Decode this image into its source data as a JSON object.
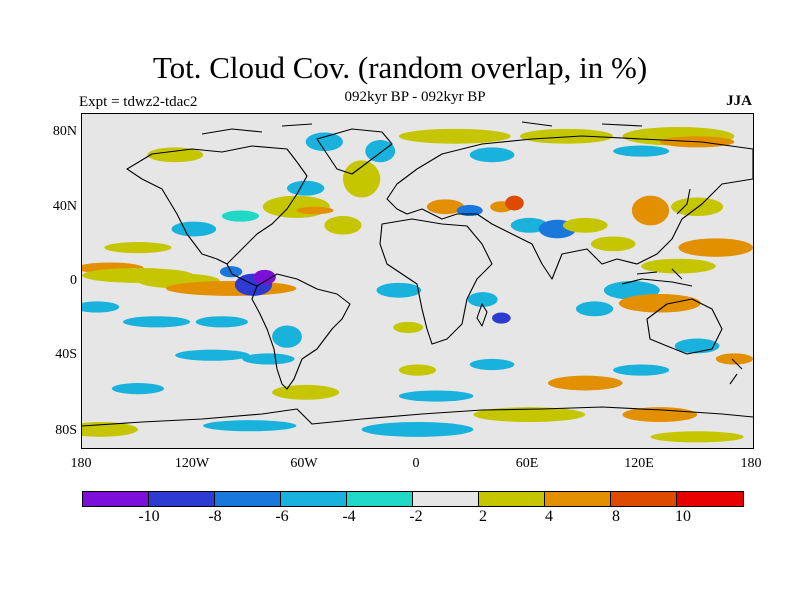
{
  "title": "Tot. Cloud Cov. (random overlap, in %)",
  "subtitle": "092kyr BP - 092kyr BP",
  "experiment": "Expt = tdwz2-tdac2",
  "season": "JJA",
  "lat_ticks": [
    "80N",
    "40N",
    "0",
    "40S",
    "80S"
  ],
  "lon_ticks": [
    "180",
    "120W",
    "60W",
    "0",
    "60E",
    "120E",
    "180"
  ],
  "colorbar": {
    "labels": [
      "-10",
      "-8",
      "-6",
      "-4",
      "-2",
      "2",
      "4",
      "8",
      "10"
    ],
    "colors": [
      "#7b11d9",
      "#2e3bd3",
      "#1a77dc",
      "#18b2dc",
      "#20d8c6",
      "#e6e6e6",
      "#c6c600",
      "#e29000",
      "#dd4a00",
      "#e60000"
    ]
  },
  "map": {
    "background": "#e6e6e6",
    "lon_range": [
      -180,
      180
    ],
    "lat_range": [
      -90,
      90
    ],
    "anomalies": [
      {
        "lon": -165,
        "lat": 7,
        "rx": 18,
        "ry": 3,
        "level": "8"
      },
      {
        "lon": -150,
        "lat": 3,
        "rx": 30,
        "ry": 4,
        "level": "4"
      },
      {
        "lon": -128,
        "lat": 0,
        "rx": 22,
        "ry": 4,
        "level": "4"
      },
      {
        "lon": -100,
        "lat": -4,
        "rx": 35,
        "ry": 4,
        "level": "8"
      },
      {
        "lon": -88,
        "lat": -2,
        "rx": 10,
        "ry": 6,
        "level": "-8"
      },
      {
        "lon": -82,
        "lat": 2,
        "rx": 6,
        "ry": 4,
        "level": "-10"
      },
      {
        "lon": -100,
        "lat": 5,
        "rx": 6,
        "ry": 3,
        "level": "-6"
      },
      {
        "lon": -172,
        "lat": -14,
        "rx": 12,
        "ry": 3,
        "level": "-4"
      },
      {
        "lon": -140,
        "lat": -22,
        "rx": 18,
        "ry": 3,
        "level": "-4"
      },
      {
        "lon": -105,
        "lat": -22,
        "rx": 14,
        "ry": 3,
        "level": "-4"
      },
      {
        "lon": -150,
        "lat": 18,
        "rx": 18,
        "ry": 3,
        "level": "4"
      },
      {
        "lon": -120,
        "lat": 28,
        "rx": 12,
        "ry": 4,
        "level": "-4"
      },
      {
        "lon": -95,
        "lat": 35,
        "rx": 10,
        "ry": 3,
        "level": "-2"
      },
      {
        "lon": -65,
        "lat": 40,
        "rx": 18,
        "ry": 6,
        "level": "4"
      },
      {
        "lon": -55,
        "lat": 38,
        "rx": 10,
        "ry": 2,
        "level": "8"
      },
      {
        "lon": -40,
        "lat": 30,
        "rx": 10,
        "ry": 5,
        "level": "4"
      },
      {
        "lon": -60,
        "lat": 50,
        "rx": 10,
        "ry": 4,
        "level": "-4"
      },
      {
        "lon": -30,
        "lat": 55,
        "rx": 10,
        "ry": 10,
        "level": "4"
      },
      {
        "lon": -20,
        "lat": 70,
        "rx": 8,
        "ry": 6,
        "level": "-4"
      },
      {
        "lon": -50,
        "lat": 75,
        "rx": 10,
        "ry": 5,
        "level": "-4"
      },
      {
        "lon": -130,
        "lat": 68,
        "rx": 15,
        "ry": 4,
        "level": "4"
      },
      {
        "lon": 20,
        "lat": 78,
        "rx": 30,
        "ry": 4,
        "level": "4"
      },
      {
        "lon": 80,
        "lat": 78,
        "rx": 25,
        "ry": 4,
        "level": "4"
      },
      {
        "lon": 140,
        "lat": 78,
        "rx": 30,
        "ry": 5,
        "level": "4"
      },
      {
        "lon": 150,
        "lat": 75,
        "rx": 20,
        "ry": 3,
        "level": "8"
      },
      {
        "lon": 120,
        "lat": 70,
        "rx": 15,
        "ry": 3,
        "level": "-4"
      },
      {
        "lon": 40,
        "lat": 68,
        "rx": 12,
        "ry": 4,
        "level": "-4"
      },
      {
        "lon": 15,
        "lat": 40,
        "rx": 10,
        "ry": 4,
        "level": "8"
      },
      {
        "lon": 28,
        "lat": 38,
        "rx": 7,
        "ry": 3,
        "level": "-6"
      },
      {
        "lon": 45,
        "lat": 40,
        "rx": 6,
        "ry": 3,
        "level": "8"
      },
      {
        "lon": 52,
        "lat": 42,
        "rx": 5,
        "ry": 4,
        "level": "10"
      },
      {
        "lon": 60,
        "lat": 30,
        "rx": 10,
        "ry": 4,
        "level": "-4"
      },
      {
        "lon": 75,
        "lat": 28,
        "rx": 10,
        "ry": 5,
        "level": "-6"
      },
      {
        "lon": 90,
        "lat": 30,
        "rx": 12,
        "ry": 4,
        "level": "4"
      },
      {
        "lon": 105,
        "lat": 20,
        "rx": 12,
        "ry": 4,
        "level": "4"
      },
      {
        "lon": 125,
        "lat": 38,
        "rx": 10,
        "ry": 8,
        "level": "8"
      },
      {
        "lon": 150,
        "lat": 40,
        "rx": 14,
        "ry": 5,
        "level": "4"
      },
      {
        "lon": 160,
        "lat": 18,
        "rx": 20,
        "ry": 5,
        "level": "8"
      },
      {
        "lon": 140,
        "lat": 8,
        "rx": 20,
        "ry": 4,
        "level": "4"
      },
      {
        "lon": 115,
        "lat": -5,
        "rx": 15,
        "ry": 5,
        "level": "-4"
      },
      {
        "lon": 130,
        "lat": -12,
        "rx": 22,
        "ry": 5,
        "level": "8"
      },
      {
        "lon": 95,
        "lat": -15,
        "rx": 10,
        "ry": 4,
        "level": "-4"
      },
      {
        "lon": 35,
        "lat": -10,
        "rx": 8,
        "ry": 4,
        "level": "-4"
      },
      {
        "lon": 45,
        "lat": -20,
        "rx": 5,
        "ry": 3,
        "level": "-8"
      },
      {
        "lon": -10,
        "lat": -5,
        "rx": 12,
        "ry": 4,
        "level": "-4"
      },
      {
        "lon": -5,
        "lat": -25,
        "rx": 8,
        "ry": 3,
        "level": "4"
      },
      {
        "lon": -70,
        "lat": -30,
        "rx": 8,
        "ry": 6,
        "level": "-4"
      },
      {
        "lon": -80,
        "lat": -42,
        "rx": 14,
        "ry": 3,
        "level": "-4"
      },
      {
        "lon": -110,
        "lat": -40,
        "rx": 20,
        "ry": 3,
        "level": "-4"
      },
      {
        "lon": 0,
        "lat": -48,
        "rx": 10,
        "ry": 3,
        "level": "4"
      },
      {
        "lon": 40,
        "lat": -45,
        "rx": 12,
        "ry": 3,
        "level": "-4"
      },
      {
        "lon": 150,
        "lat": -35,
        "rx": 12,
        "ry": 4,
        "level": "-4"
      },
      {
        "lon": 170,
        "lat": -42,
        "rx": 10,
        "ry": 3,
        "level": "8"
      },
      {
        "lon": 90,
        "lat": -55,
        "rx": 20,
        "ry": 4,
        "level": "8"
      },
      {
        "lon": 120,
        "lat": -48,
        "rx": 15,
        "ry": 3,
        "level": "-4"
      },
      {
        "lon": -60,
        "lat": -60,
        "rx": 18,
        "ry": 4,
        "level": "4"
      },
      {
        "lon": -150,
        "lat": -58,
        "rx": 14,
        "ry": 3,
        "level": "-4"
      },
      {
        "lon": 10,
        "lat": -62,
        "rx": 20,
        "ry": 3,
        "level": "-4"
      },
      {
        "lon": 60,
        "lat": -72,
        "rx": 30,
        "ry": 4,
        "level": "4"
      },
      {
        "lon": 130,
        "lat": -72,
        "rx": 20,
        "ry": 4,
        "level": "8"
      },
      {
        "lon": -170,
        "lat": -80,
        "rx": 20,
        "ry": 4,
        "level": "4"
      },
      {
        "lon": -90,
        "lat": -78,
        "rx": 25,
        "ry": 3,
        "level": "-4"
      },
      {
        "lon": 0,
        "lat": -80,
        "rx": 30,
        "ry": 4,
        "level": "-4"
      },
      {
        "lon": 150,
        "lat": -84,
        "rx": 25,
        "ry": 3,
        "level": "4"
      }
    ]
  }
}
